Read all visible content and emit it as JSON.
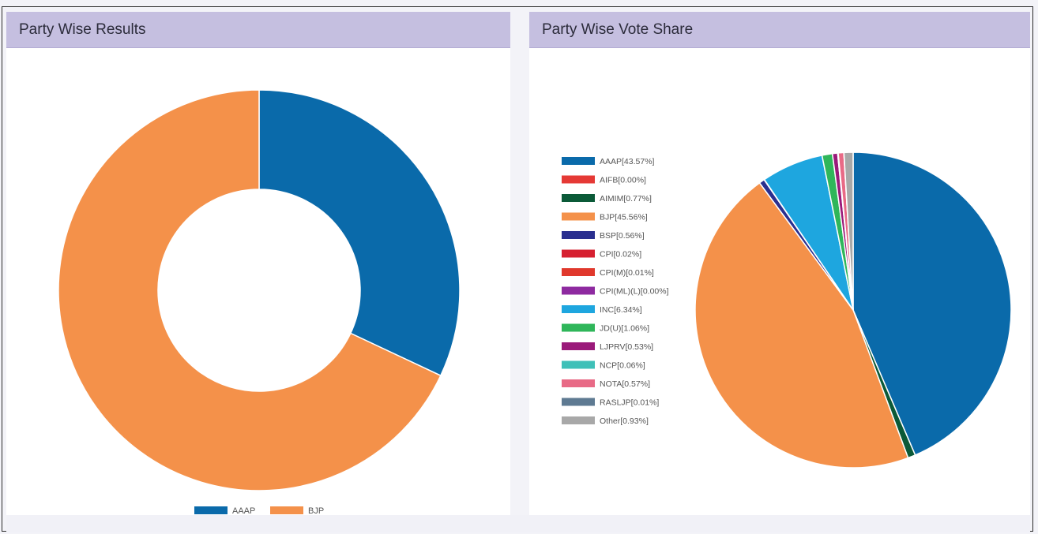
{
  "cards": {
    "left": {
      "title": "Party Wise Results"
    },
    "right": {
      "title": "Party Wise Vote Share"
    }
  },
  "chart_data": [
    {
      "type": "donut",
      "title": "Party Wise Results",
      "series": [
        {
          "name": "AAAP",
          "value": 32,
          "color": "#0a6aaa"
        },
        {
          "name": "BJP",
          "value": 68,
          "color": "#f4914a"
        }
      ],
      "legend": "bottom"
    },
    {
      "type": "pie",
      "title": "Party Wise Vote Share",
      "series": [
        {
          "name": "AAAP",
          "label": "AAAP[43.57%]",
          "value": 43.57,
          "color": "#0a6aaa"
        },
        {
          "name": "AIFB",
          "label": "AIFB[0.00%]",
          "value": 0.0,
          "color": "#e53935"
        },
        {
          "name": "AIMIM",
          "label": "AIMIM[0.77%]",
          "value": 0.77,
          "color": "#0b5a38"
        },
        {
          "name": "BJP",
          "label": "BJP[45.56%]",
          "value": 45.56,
          "color": "#f4914a"
        },
        {
          "name": "BSP",
          "label": "BSP[0.56%]",
          "value": 0.56,
          "color": "#2a2f8f"
        },
        {
          "name": "CPI",
          "label": "CPI[0.02%]",
          "value": 0.02,
          "color": "#d62030"
        },
        {
          "name": "CPI(M)",
          "label": "CPI(M)[0.01%]",
          "value": 0.01,
          "color": "#e0382c"
        },
        {
          "name": "CPI(ML)(L)",
          "label": "CPI(ML)(L)[0.00%]",
          "value": 0.0,
          "color": "#8e2aa0"
        },
        {
          "name": "INC",
          "label": "INC[6.34%]",
          "value": 6.34,
          "color": "#1ea6df"
        },
        {
          "name": "JD(U)",
          "label": "JD(U)[1.06%]",
          "value": 1.06,
          "color": "#2fb65a"
        },
        {
          "name": "LJPRV",
          "label": "LJPRV[0.53%]",
          "value": 0.53,
          "color": "#9a1a7a"
        },
        {
          "name": "NCP",
          "label": "NCP[0.06%]",
          "value": 0.06,
          "color": "#3fc0b8"
        },
        {
          "name": "NOTA",
          "label": "NOTA[0.57%]",
          "value": 0.57,
          "color": "#e86a86"
        },
        {
          "name": "RASLJP",
          "label": "RASLJP[0.01%]",
          "value": 0.01,
          "color": "#5e7a92"
        },
        {
          "name": "Other",
          "label": "Other[0.93%]",
          "value": 0.93,
          "color": "#a8a8a8"
        }
      ],
      "legend": "left"
    }
  ]
}
